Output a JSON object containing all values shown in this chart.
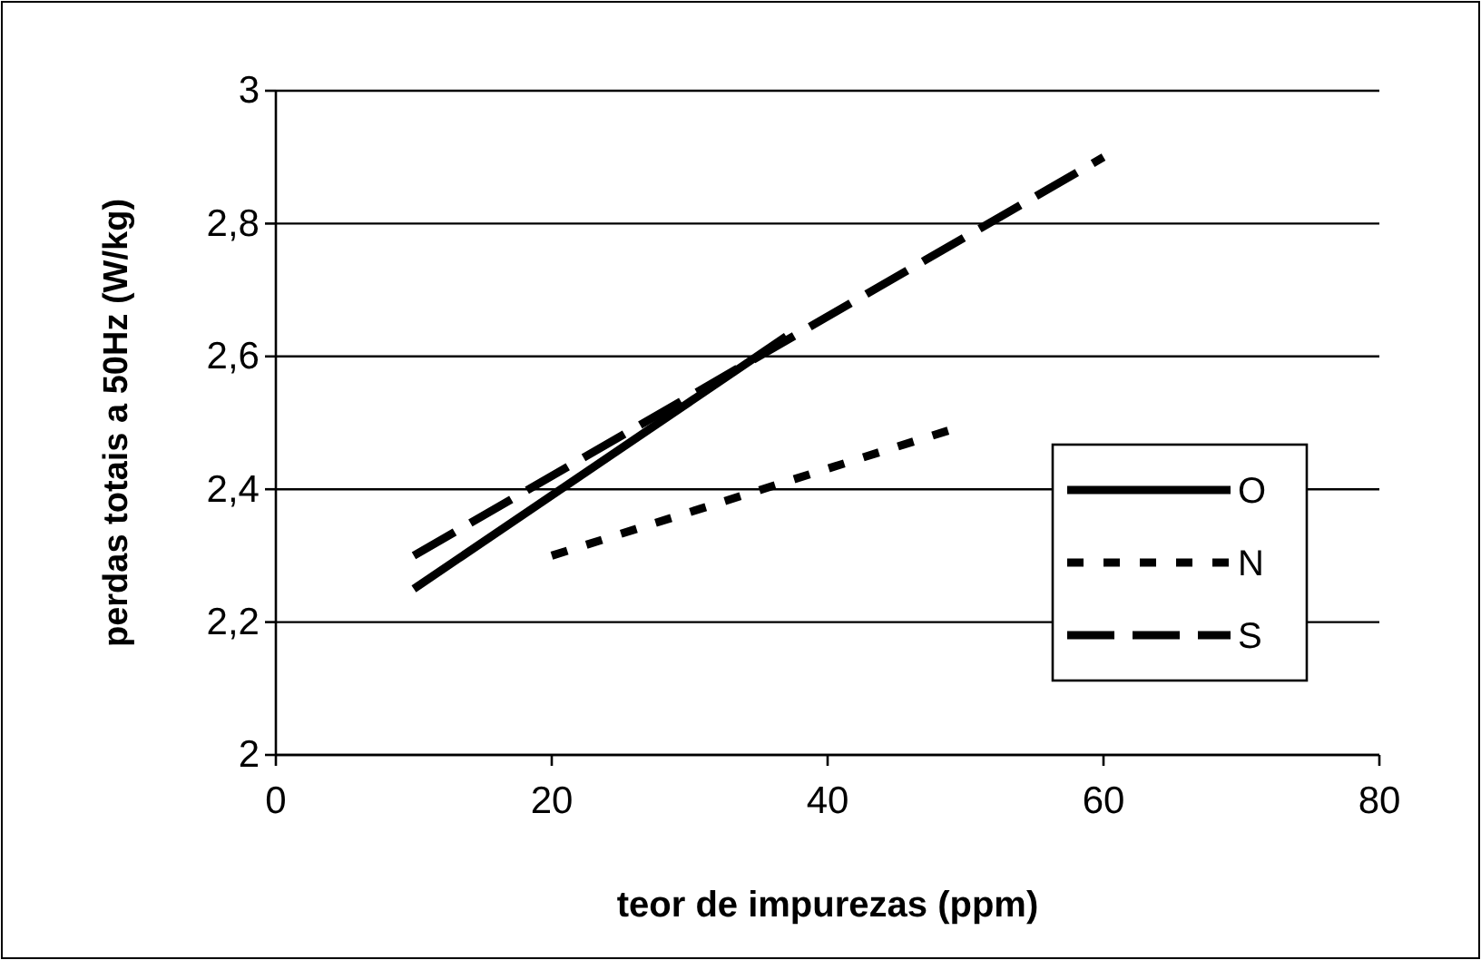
{
  "chart_data": {
    "type": "line",
    "xlabel": "teor de impurezas (ppm)",
    "ylabel": "perdas totais a 50Hz (W/kg)",
    "xlim": [
      0,
      80
    ],
    "xticks": [
      0,
      20,
      40,
      60,
      80
    ],
    "ylim": [
      2,
      3
    ],
    "yticks": [
      2,
      {
        "value": 2.2,
        "label": "2,2"
      },
      {
        "value": 2.4,
        "label": "2,4"
      },
      {
        "value": 2.6,
        "label": "2,6"
      },
      {
        "value": 2.8,
        "label": "2,8"
      },
      3
    ],
    "grid": "y",
    "legend": "right",
    "marker": "none",
    "series": [
      {
        "name": "O",
        "color": "#000000",
        "line_style": "solid",
        "x": [
          10,
          37
        ],
        "values": [
          2.25,
          2.63
        ]
      },
      {
        "name": "N",
        "color": "#000000",
        "line_style": "dotted",
        "x": [
          20,
          49
        ],
        "values": [
          2.3,
          2.49
        ]
      },
      {
        "name": "S",
        "color": "#000000",
        "line_style": "dashed",
        "x": [
          10,
          60
        ],
        "values": [
          2.3,
          2.9
        ]
      }
    ]
  }
}
